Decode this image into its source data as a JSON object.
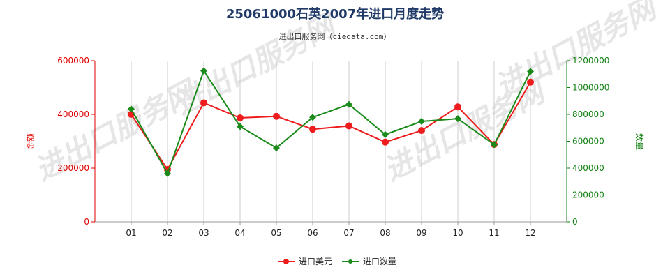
{
  "title": "25061000石英2007年进口月度走势",
  "subtitle": "进出口服务网（ciedata.com）",
  "watermark": "进出口服务网",
  "colors": {
    "amount": "#ee1c1c",
    "quantity": "#1a8a1a",
    "left_axis": "#e00000",
    "right_axis": "#108010",
    "grid": "#cccccc"
  },
  "chart_data": {
    "type": "line",
    "categories": [
      "01",
      "02",
      "03",
      "04",
      "05",
      "06",
      "07",
      "08",
      "09",
      "10",
      "11",
      "12"
    ],
    "series": [
      {
        "name": "进口美元",
        "axis": "left",
        "marker": "circle",
        "values": [
          400000,
          195000,
          443000,
          387000,
          393000,
          345000,
          357000,
          297000,
          340000,
          428000,
          288000,
          520000
        ]
      },
      {
        "name": "进口数量",
        "axis": "right",
        "marker": "diamond",
        "values": [
          840000,
          360000,
          1125000,
          710000,
          550000,
          778000,
          875000,
          650000,
          748000,
          768000,
          575000,
          1120000
        ]
      }
    ],
    "y_left": {
      "label": "金额",
      "ylim": [
        0,
        600000
      ],
      "ticks": [
        "0",
        "200000",
        "400000",
        "600000"
      ]
    },
    "y_right": {
      "label": "数量",
      "ylim": [
        0,
        1200000
      ],
      "ticks": [
        "0",
        "200000",
        "400000",
        "600000",
        "800000",
        "1000000",
        "1200000"
      ]
    },
    "grid": "vertical",
    "legend": "bottom-center"
  }
}
